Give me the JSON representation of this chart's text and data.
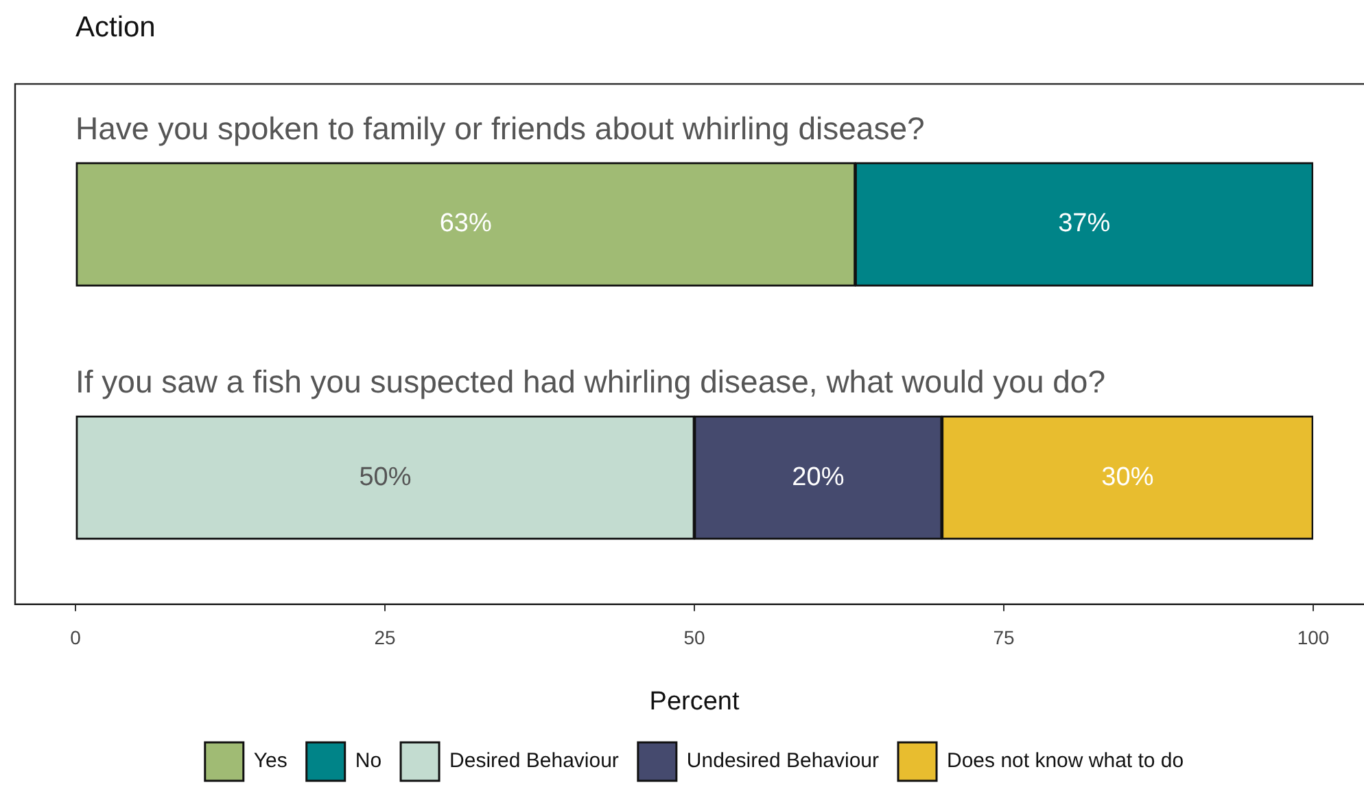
{
  "chart_data": {
    "type": "bar",
    "orientation": "horizontal",
    "stacked": true,
    "title": "Action",
    "xlabel": "Percent",
    "categories": [
      "Have you spoken to family or friends about whirling disease?",
      "If you saw a fish you suspected had whirling disease, what would you do?"
    ],
    "series": [
      {
        "name": "Yes",
        "color": "#a0bb74",
        "values": [
          63,
          null
        ],
        "value_labels": [
          "63%",
          null
        ]
      },
      {
        "name": "No",
        "color": "#008488",
        "values": [
          37,
          null
        ],
        "value_labels": [
          "37%",
          null
        ]
      },
      {
        "name": "Desired Behaviour",
        "color": "#c3dcd0",
        "values": [
          null,
          50
        ],
        "value_labels": [
          null,
          "50%"
        ]
      },
      {
        "name": "Undesired Behaviour",
        "color": "#454a6e",
        "values": [
          null,
          20
        ],
        "value_labels": [
          null,
          "20%"
        ]
      },
      {
        "name": "Does not know what to do",
        "color": "#e8bd2f",
        "values": [
          null,
          30
        ],
        "value_labels": [
          null,
          "30%"
        ]
      }
    ],
    "xlim": [
      0,
      100
    ],
    "xticks": [
      0,
      25,
      50,
      75,
      100
    ],
    "grid": false,
    "legend": "bottom",
    "tick_labels": "x"
  }
}
